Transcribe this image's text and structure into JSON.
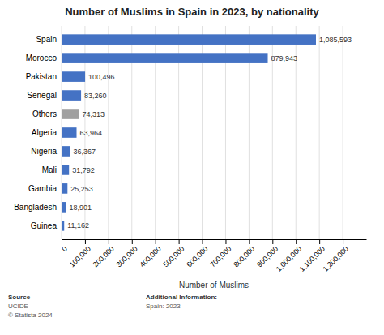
{
  "chart_data": {
    "type": "bar",
    "orientation": "horizontal",
    "title": "Number of Muslims in Spain in 2023, by nationality",
    "categories": [
      "Spain",
      "Morocco",
      "Pakistan",
      "Senegal",
      "Others",
      "Algeria",
      "Nigeria",
      "Mali",
      "Gambia",
      "Bangladesh",
      "Guinea"
    ],
    "values": [
      1085593,
      879943,
      100496,
      83260,
      74313,
      63964,
      36367,
      31792,
      25253,
      18901,
      11162
    ],
    "value_labels": [
      "1,085,593",
      "879,943",
      "100,496",
      "83,260",
      "74,313",
      "63,964",
      "36,367",
      "31,792",
      "25,253",
      "18,901",
      "11,162"
    ],
    "data_labels": true,
    "colors": [
      "#4472c4",
      "#4472c4",
      "#4472c4",
      "#4472c4",
      "#a0a0a0",
      "#4472c4",
      "#4472c4",
      "#4472c4",
      "#4472c4",
      "#4472c4",
      "#4472c4"
    ],
    "xlabel": "Number of Muslims",
    "xlim": [
      0,
      1300000
    ],
    "xticks": [
      0,
      {
        "value": 100000,
        "label": "100,000"
      },
      {
        "value": 200000,
        "label": "200,000"
      },
      {
        "value": 300000,
        "label": "300,000"
      },
      {
        "value": 400000,
        "label": "400,000"
      },
      {
        "value": 500000,
        "label": "500,000"
      },
      {
        "value": 600000,
        "label": "600,000"
      },
      {
        "value": 700000,
        "label": "700,000"
      },
      {
        "value": 800000,
        "label": "800,000"
      },
      {
        "value": 900000,
        "label": "900,000"
      },
      {
        "value": 1000000,
        "label": "1,000,000"
      },
      {
        "value": 1100000,
        "label": "1,100,000"
      },
      {
        "value": 1200000,
        "label": "1,200,000"
      }
    ],
    "grid": true,
    "annotations": [
      "Source\nUCIDE\n© Statista 2024",
      "Additional Information:\nSpain: 2023"
    ]
  }
}
